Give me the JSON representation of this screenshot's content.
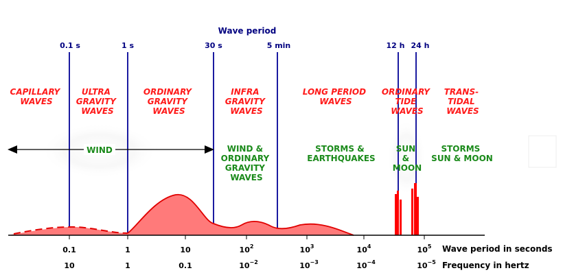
{
  "title": "Wave period",
  "period_markers": [
    "0.1 s",
    "1 s",
    "30 s",
    "5 min",
    "12 h",
    "24 h"
  ],
  "bands": [
    {
      "id": "capillary",
      "lines": [
        "CAPILLARY",
        "WAVES"
      ]
    },
    {
      "id": "ultra-gravity",
      "lines": [
        "ULTRA",
        "GRAVITY",
        "WAVES"
      ]
    },
    {
      "id": "ordinary-gravity",
      "lines": [
        "ORDINARY",
        "GRAVITY",
        "WAVES"
      ]
    },
    {
      "id": "infra-gravity",
      "lines": [
        "INFRA",
        "GRAVITY",
        "WAVES"
      ]
    },
    {
      "id": "long-period",
      "lines": [
        "LONG PERIOD",
        "WAVES"
      ]
    },
    {
      "id": "ordinary-tide",
      "lines": [
        "ORDINARY",
        "TIDE",
        "WAVES"
      ]
    },
    {
      "id": "trans-tidal",
      "lines": [
        "TRANS-",
        "TIDAL",
        "WAVES"
      ]
    }
  ],
  "causes": [
    {
      "id": "wind",
      "lines": [
        "WIND"
      ]
    },
    {
      "id": "wind-ordinary-gravity",
      "lines": [
        "WIND &",
        "ORDINARY",
        "GRAVITY",
        "WAVES"
      ]
    },
    {
      "id": "storms-earthquakes",
      "lines": [
        "STORMS &",
        "EARTHQUAKES"
      ]
    },
    {
      "id": "sun-moon",
      "lines": [
        "SUN",
        "&",
        "MOON"
      ]
    },
    {
      "id": "storms-sun-moon",
      "lines": [
        "STORMS",
        "SUN & MOON"
      ]
    }
  ],
  "period_ticks": [
    {
      "base": "0.1",
      "exp": ""
    },
    {
      "base": "1",
      "exp": ""
    },
    {
      "base": "10",
      "exp": ""
    },
    {
      "base": "10",
      "exp": "2"
    },
    {
      "base": "10",
      "exp": "3"
    },
    {
      "base": "10",
      "exp": "4"
    },
    {
      "base": "10",
      "exp": "5"
    }
  ],
  "frequency_ticks": [
    {
      "base": "10",
      "exp": ""
    },
    {
      "base": "1",
      "exp": ""
    },
    {
      "base": "0.1",
      "exp": ""
    },
    {
      "base": "10",
      "exp": "−2"
    },
    {
      "base": "10",
      "exp": "−3"
    },
    {
      "base": "10",
      "exp": "−4"
    },
    {
      "base": "10",
      "exp": "−5"
    }
  ],
  "period_axis_label": "Wave period in seconds",
  "frequency_axis_label": "Frequency in hertz",
  "colors": {
    "band_text": "#ff1a1a",
    "cause_text": "#1a8a1a",
    "period_lines": "#1a1aa0",
    "energy_fill": "#ff7a7a",
    "energy_stroke": "#e00000",
    "tide_bars": "#ff0000"
  }
}
